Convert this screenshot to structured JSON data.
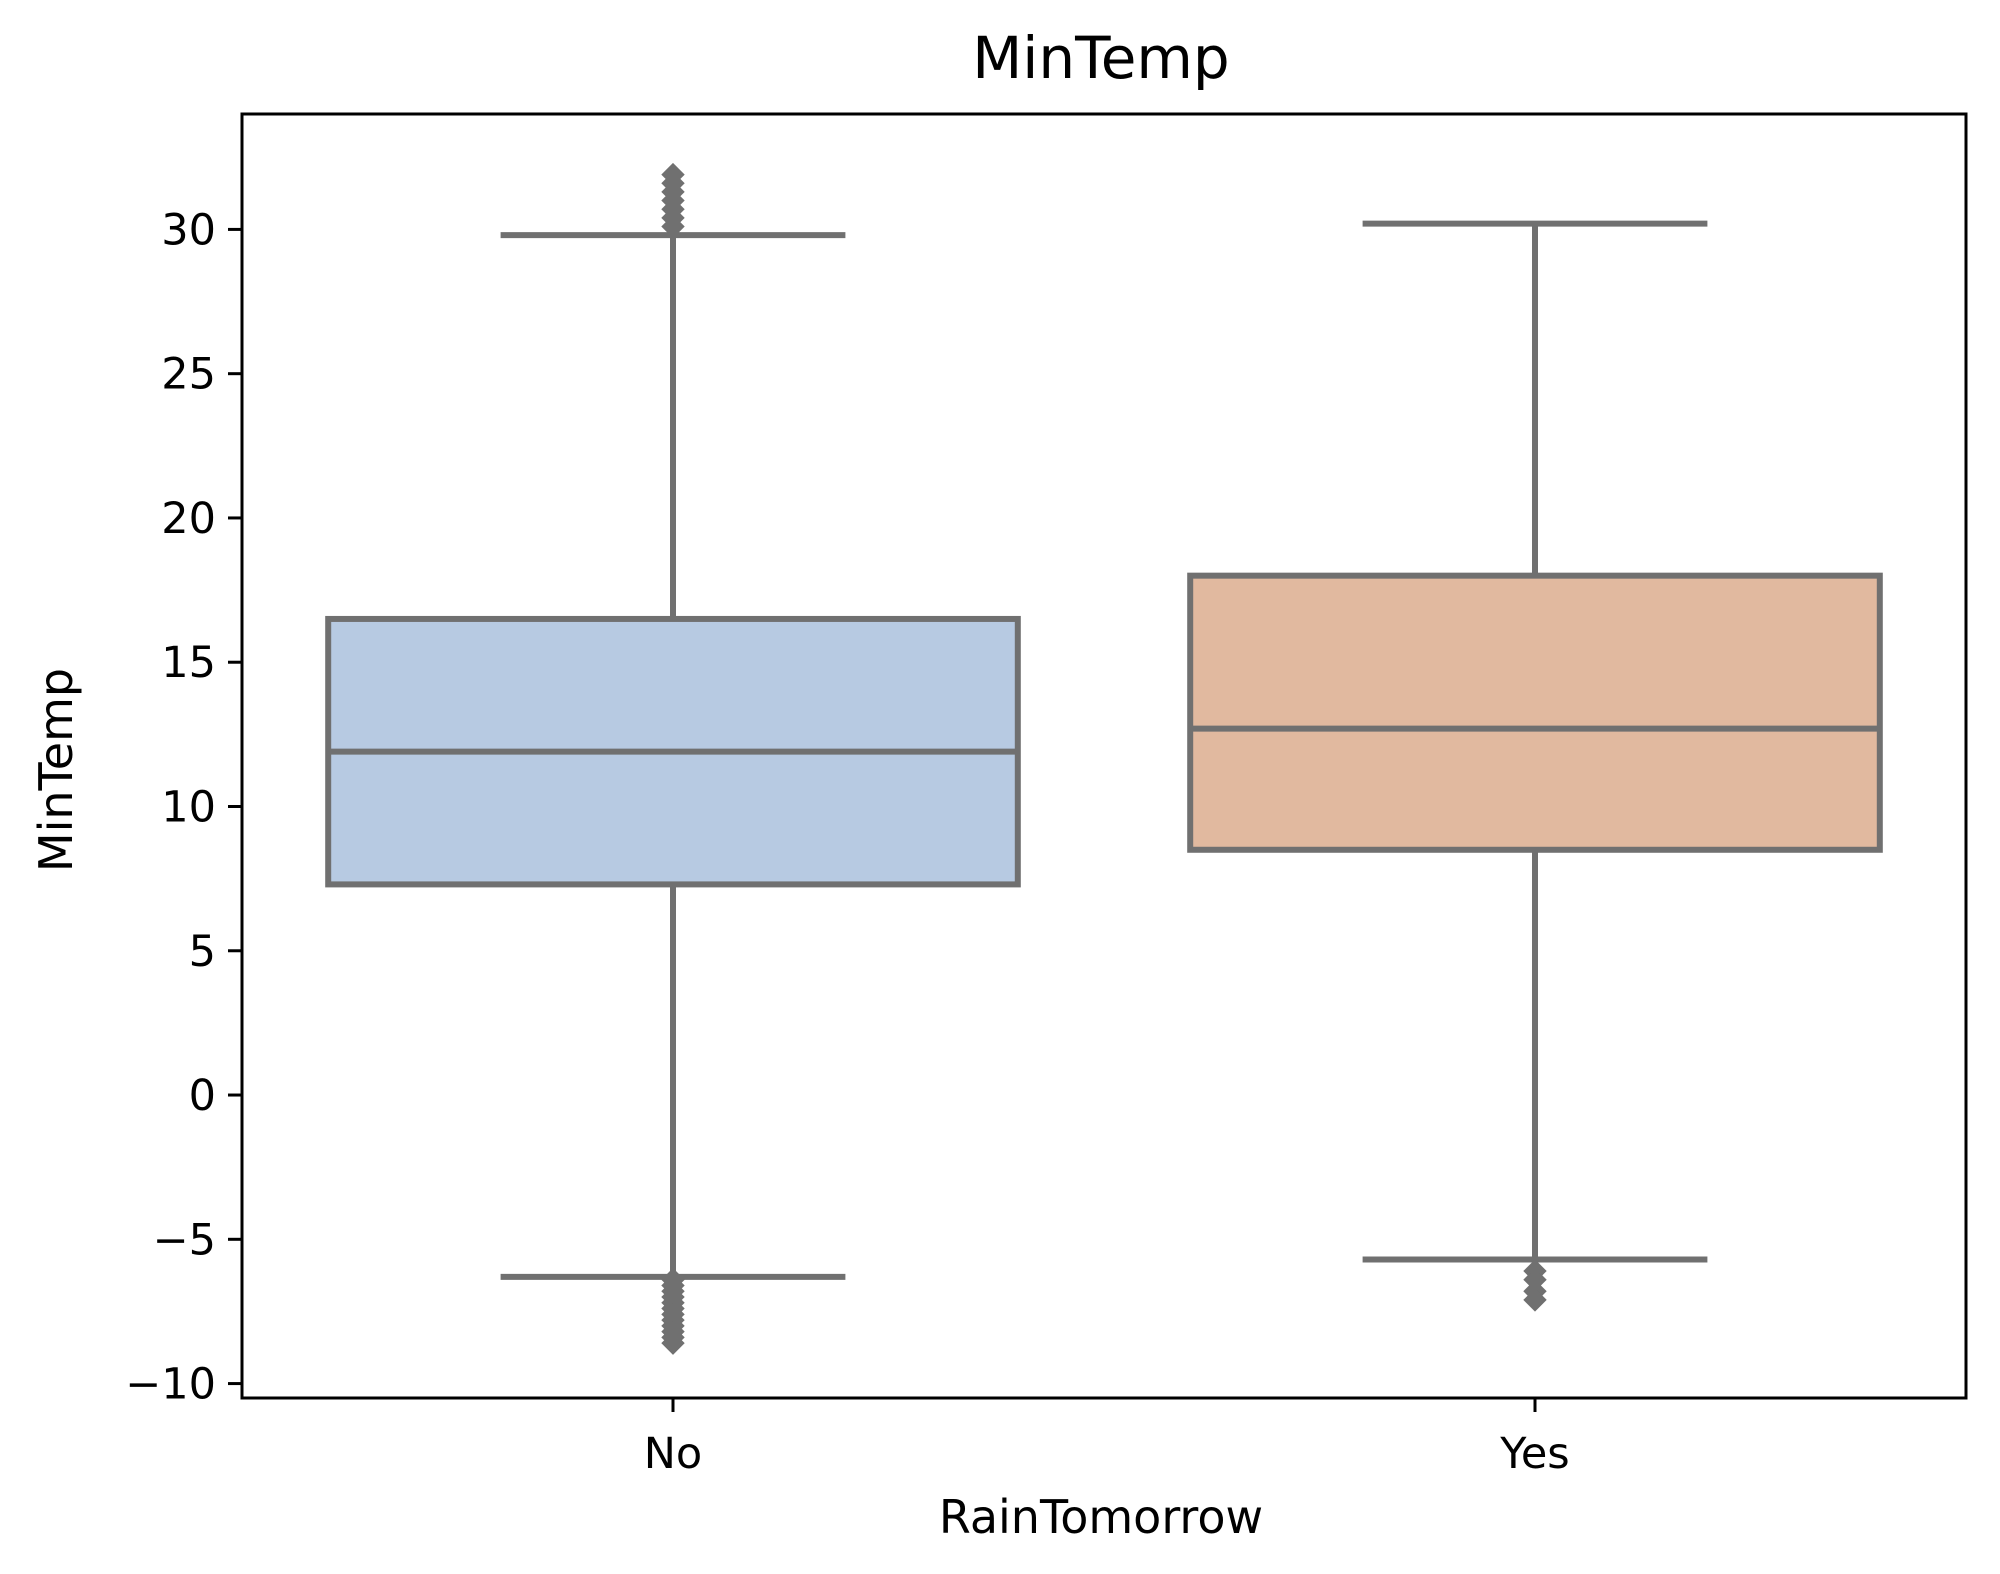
{
  "chart_data": {
    "type": "box",
    "title": "MinTemp",
    "xlabel": "RainTomorrow",
    "ylabel": "MinTemp",
    "ylim": [
      -10.5,
      34
    ],
    "yticks": [
      -10,
      -5,
      0,
      5,
      10,
      15,
      20,
      25,
      30
    ],
    "ytick_labels": [
      "−10",
      "−5",
      "0",
      "5",
      "10",
      "15",
      "20",
      "25",
      "30"
    ],
    "categories": [
      "No",
      "Yes"
    ],
    "grid": false,
    "colors": {
      "box_edge": "#707070",
      "frame": "#000000"
    },
    "boxes": [
      {
        "category": "No",
        "fill": "#b7cae2",
        "whisker_low": -6.3,
        "q1": 7.3,
        "median": 11.9,
        "q3": 16.5,
        "whisker_high": 29.8,
        "outliers": [
          -6.4,
          -6.6,
          -6.8,
          -7.0,
          -7.2,
          -7.4,
          -7.6,
          -7.8,
          -8.0,
          -8.2,
          -8.4,
          -8.6,
          30.1,
          30.4,
          30.7,
          31.0,
          31.3,
          31.6,
          31.9
        ]
      },
      {
        "category": "Yes",
        "fill": "#e1b99f",
        "whisker_low": -5.7,
        "q1": 8.5,
        "median": 12.7,
        "q3": 18.0,
        "whisker_high": 30.2,
        "outliers": [
          -6.1,
          -6.4,
          -6.8,
          -7.1
        ]
      }
    ]
  }
}
